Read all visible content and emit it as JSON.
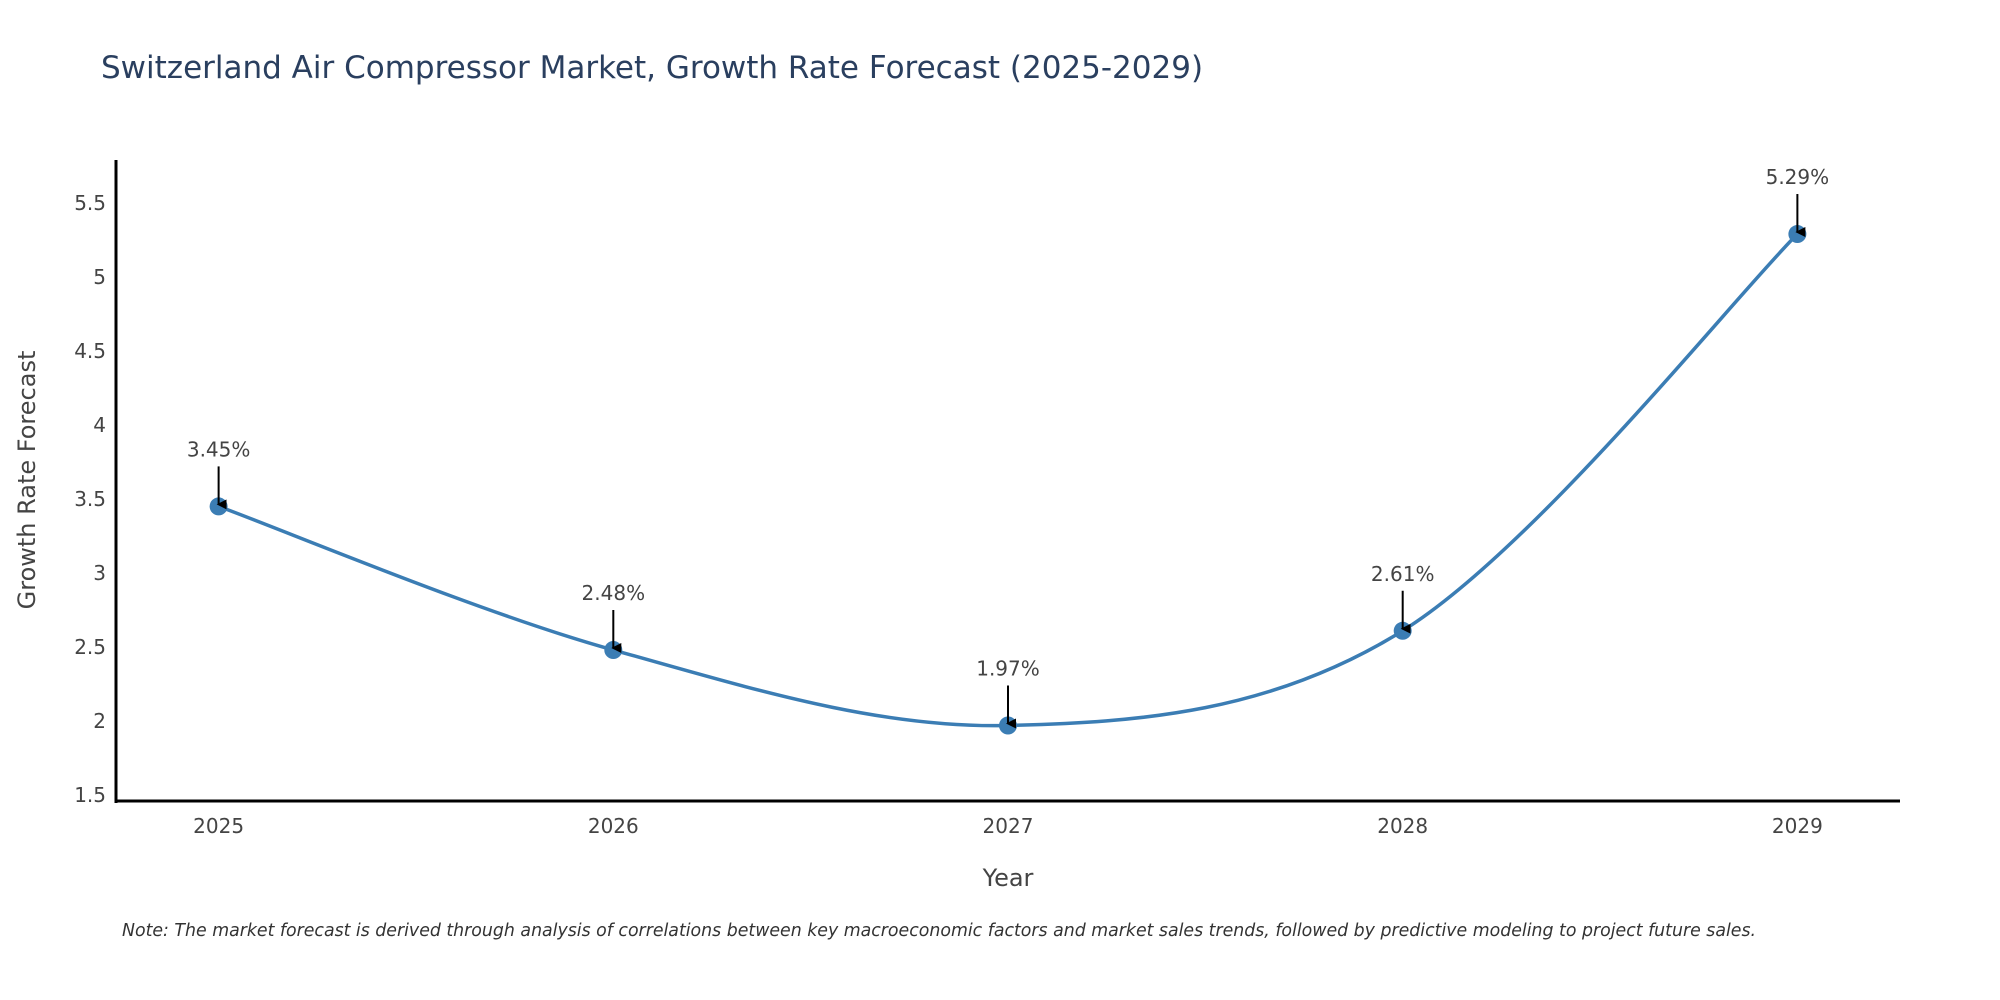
{
  "chart_data": {
    "type": "line",
    "title": "Switzerland Air Compressor Market, Growth Rate Forecast (2025-2029)",
    "xlabel": "Year",
    "ylabel": "Growth Rate Forecast",
    "x": [
      2025,
      2026,
      2027,
      2028,
      2029
    ],
    "series": [
      {
        "name": "Growth Rate Forecast",
        "values": [
          3.45,
          2.48,
          1.97,
          2.61,
          5.29
        ],
        "labels": [
          "3.45%",
          "2.48%",
          "1.97%",
          "2.61%",
          "5.29%"
        ],
        "color": "#3b7db4",
        "line_shape": "spline",
        "markers": true
      }
    ],
    "x_ticks": [
      "2025",
      "2026",
      "2027",
      "2028",
      "2029"
    ],
    "y_ticks": [
      "1.5",
      "2",
      "2.5",
      "3",
      "3.5",
      "4",
      "4.5",
      "5",
      "5.5"
    ],
    "y_tick_values": [
      1.5,
      2,
      2.5,
      3,
      3.5,
      4,
      4.5,
      5,
      5.5
    ],
    "xlim": [
      2024.74,
      2029.26
    ],
    "ylim": [
      1.46,
      5.79
    ],
    "grid": false,
    "legend": "none",
    "annotation_style": "arrow-down",
    "note": "Note: The market forecast is derived through analysis of correlations between key macroeconomic factors and market sales trends, followed by predictive modeling to project future sales."
  }
}
